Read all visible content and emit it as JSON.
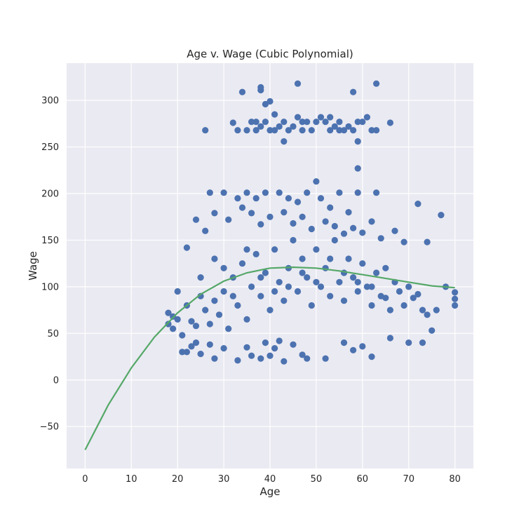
{
  "chart_data": {
    "type": "scatter",
    "title": "Age v. Wage (Cubic Polynomial)",
    "xlabel": "Age",
    "ylabel": "Wage",
    "xlim": [
      -4,
      84
    ],
    "ylim": [
      -95,
      340
    ],
    "xticks": [
      0,
      10,
      20,
      30,
      40,
      50,
      60,
      70,
      80
    ],
    "yticks": [
      -50,
      0,
      50,
      100,
      150,
      200,
      250,
      300
    ],
    "grid": true,
    "colors": {
      "background": "#eaeaf2",
      "grid": "#ffffff",
      "points": "#4c72b0",
      "fit": "#55a868"
    },
    "scatter_points": [
      [
        34,
        309
      ],
      [
        38,
        311
      ],
      [
        38,
        314
      ],
      [
        40,
        299
      ],
      [
        39,
        296
      ],
      [
        46,
        318
      ],
      [
        58,
        309
      ],
      [
        63,
        318
      ],
      [
        26,
        268
      ],
      [
        32,
        276
      ],
      [
        33,
        268
      ],
      [
        35,
        268
      ],
      [
        36,
        277
      ],
      [
        37,
        268
      ],
      [
        38,
        272
      ],
      [
        39,
        277
      ],
      [
        40,
        268
      ],
      [
        41,
        285
      ],
      [
        42,
        272
      ],
      [
        43,
        256
      ],
      [
        44,
        268
      ],
      [
        45,
        272
      ],
      [
        46,
        282
      ],
      [
        47,
        268
      ],
      [
        48,
        277
      ],
      [
        49,
        268
      ],
      [
        50,
        277
      ],
      [
        51,
        282
      ],
      [
        52,
        277
      ],
      [
        53,
        268
      ],
      [
        54,
        272
      ],
      [
        55,
        277
      ],
      [
        56,
        268
      ],
      [
        57,
        272
      ],
      [
        58,
        268
      ],
      [
        59,
        256
      ],
      [
        60,
        277
      ],
      [
        61,
        282
      ],
      [
        62,
        268
      ],
      [
        63,
        268
      ],
      [
        66,
        276
      ],
      [
        37,
        277
      ],
      [
        43,
        277
      ],
      [
        47,
        277
      ],
      [
        53,
        282
      ],
      [
        59,
        277
      ],
      [
        41,
        268
      ],
      [
        55,
        268
      ],
      [
        50,
        213
      ],
      [
        59,
        227
      ],
      [
        27,
        201
      ],
      [
        30,
        201
      ],
      [
        33,
        195
      ],
      [
        35,
        201
      ],
      [
        37,
        195
      ],
      [
        39,
        201
      ],
      [
        42,
        201
      ],
      [
        44,
        195
      ],
      [
        46,
        191
      ],
      [
        48,
        201
      ],
      [
        51,
        195
      ],
      [
        53,
        185
      ],
      [
        55,
        201
      ],
      [
        57,
        180
      ],
      [
        59,
        201
      ],
      [
        63,
        201
      ],
      [
        72,
        189
      ],
      [
        77,
        177
      ],
      [
        22,
        142
      ],
      [
        24,
        172
      ],
      [
        26,
        160
      ],
      [
        28,
        179
      ],
      [
        31,
        172
      ],
      [
        34,
        185
      ],
      [
        36,
        179
      ],
      [
        38,
        167
      ],
      [
        40,
        175
      ],
      [
        43,
        180
      ],
      [
        45,
        168
      ],
      [
        47,
        175
      ],
      [
        49,
        162
      ],
      [
        52,
        170
      ],
      [
        54,
        165
      ],
      [
        56,
        157
      ],
      [
        58,
        163
      ],
      [
        60,
        158
      ],
      [
        62,
        170
      ],
      [
        64,
        152
      ],
      [
        67,
        160
      ],
      [
        69,
        148
      ],
      [
        74,
        148
      ],
      [
        21,
        30
      ],
      [
        22,
        30
      ],
      [
        23,
        36
      ],
      [
        24,
        40
      ],
      [
        25,
        28
      ],
      [
        27,
        38
      ],
      [
        28,
        23
      ],
      [
        30,
        34
      ],
      [
        33,
        21
      ],
      [
        35,
        35
      ],
      [
        36,
        26
      ],
      [
        38,
        23
      ],
      [
        39,
        40
      ],
      [
        40,
        26
      ],
      [
        41,
        34
      ],
      [
        42,
        42
      ],
      [
        43,
        20
      ],
      [
        45,
        38
      ],
      [
        47,
        27
      ],
      [
        48,
        23
      ],
      [
        52,
        23
      ],
      [
        56,
        40
      ],
      [
        58,
        32
      ],
      [
        60,
        36
      ],
      [
        62,
        25
      ],
      [
        66,
        45
      ],
      [
        70,
        40
      ],
      [
        73,
        40
      ],
      [
        75,
        53
      ],
      [
        18,
        60
      ],
      [
        18,
        72
      ],
      [
        19,
        55
      ],
      [
        19,
        68
      ],
      [
        20,
        65
      ],
      [
        21,
        48
      ],
      [
        22,
        80
      ],
      [
        23,
        63
      ],
      [
        24,
        58
      ],
      [
        25,
        90
      ],
      [
        26,
        75
      ],
      [
        27,
        60
      ],
      [
        28,
        85
      ],
      [
        29,
        70
      ],
      [
        30,
        95
      ],
      [
        31,
        55
      ],
      [
        32,
        110
      ],
      [
        33,
        80
      ],
      [
        34,
        125
      ],
      [
        35,
        65
      ],
      [
        36,
        100
      ],
      [
        37,
        135
      ],
      [
        38,
        90
      ],
      [
        39,
        115
      ],
      [
        40,
        75
      ],
      [
        41,
        140
      ],
      [
        42,
        105
      ],
      [
        43,
        85
      ],
      [
        44,
        120
      ],
      [
        45,
        150
      ],
      [
        46,
        95
      ],
      [
        47,
        130
      ],
      [
        48,
        110
      ],
      [
        49,
        80
      ],
      [
        50,
        140
      ],
      [
        51,
        100
      ],
      [
        52,
        120
      ],
      [
        53,
        90
      ],
      [
        54,
        150
      ],
      [
        55,
        105
      ],
      [
        56,
        85
      ],
      [
        57,
        130
      ],
      [
        58,
        110
      ],
      [
        59,
        95
      ],
      [
        60,
        125
      ],
      [
        61,
        100
      ],
      [
        62,
        80
      ],
      [
        63,
        115
      ],
      [
        64,
        90
      ],
      [
        65,
        120
      ],
      [
        66,
        75
      ],
      [
        67,
        105
      ],
      [
        68,
        95
      ],
      [
        69,
        80
      ],
      [
        70,
        100
      ],
      [
        71,
        88
      ],
      [
        72,
        92
      ],
      [
        73,
        75
      ],
      [
        74,
        70
      ],
      [
        76,
        75
      ],
      [
        78,
        100
      ],
      [
        80,
        80
      ],
      [
        80,
        87
      ],
      [
        80,
        94
      ],
      [
        20,
        95
      ],
      [
        25,
        110
      ],
      [
        28,
        130
      ],
      [
        30,
        120
      ],
      [
        32,
        90
      ],
      [
        35,
        140
      ],
      [
        38,
        110
      ],
      [
        41,
        95
      ],
      [
        44,
        100
      ],
      [
        47,
        115
      ],
      [
        50,
        105
      ],
      [
        53,
        130
      ],
      [
        56,
        115
      ],
      [
        59,
        105
      ],
      [
        62,
        100
      ],
      [
        65,
        88
      ]
    ],
    "fit_curve": [
      [
        0,
        -75
      ],
      [
        5,
        -27
      ],
      [
        10,
        13
      ],
      [
        15,
        46
      ],
      [
        20,
        72
      ],
      [
        25,
        92
      ],
      [
        30,
        106
      ],
      [
        35,
        115
      ],
      [
        40,
        120
      ],
      [
        45,
        121
      ],
      [
        50,
        120
      ],
      [
        55,
        117
      ],
      [
        60,
        113
      ],
      [
        65,
        109
      ],
      [
        70,
        105
      ],
      [
        75,
        101
      ],
      [
        80,
        99
      ]
    ]
  }
}
